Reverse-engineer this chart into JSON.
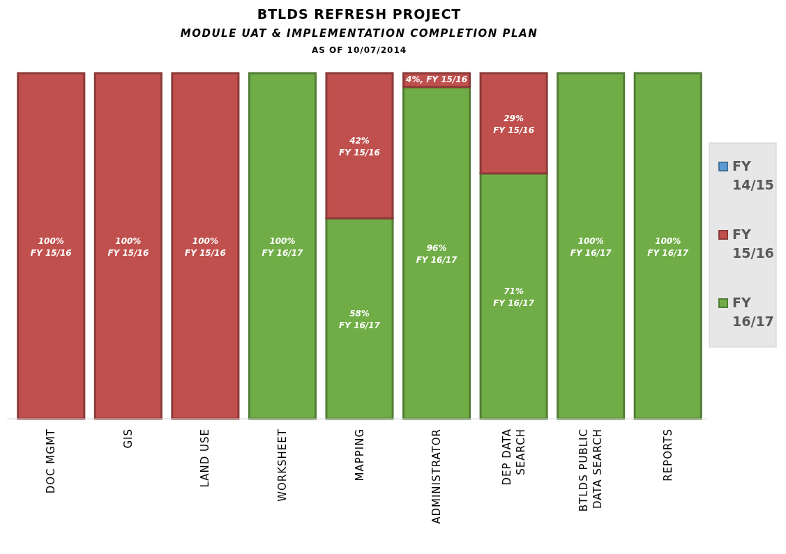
{
  "chart_data": {
    "type": "bar",
    "stacked": true,
    "title": "BTLDS REFRESH PROJECT",
    "subtitle": "MODULE UAT & IMPLEMENTATION COMPLETION PLAN",
    "annotations": [
      "AS OF 10/07/2014"
    ],
    "categories": [
      "DOC MGMT",
      "GIS",
      "LAND USE",
      "WORKSHEET",
      "MAPPING",
      "ADMINISTRATOR",
      "DEP DATA SEARCH",
      "BTLDS PUBLIC DATA SEARCH",
      "REPORTS"
    ],
    "series": [
      {
        "name": "FY 16/17",
        "color": "#70ad47",
        "values": [
          null,
          null,
          null,
          100,
          58,
          96,
          71,
          100,
          100
        ],
        "value_labels": [
          null,
          null,
          null,
          "100%\nFY 16/17",
          "58%\nFY 16/17",
          "96%\nFY 16/17",
          "71%\nFY 16/17",
          "100%\nFY 16/17",
          "100%\nFY 16/17"
        ]
      },
      {
        "name": "FY 15/16",
        "color": "#c0504d",
        "values": [
          100,
          100,
          100,
          null,
          42,
          4,
          29,
          null,
          null
        ],
        "value_labels": [
          "100%\nFY 15/16",
          "100%\nFY 15/16",
          "100%\nFY 15/16",
          null,
          "42%\nFY 15/16",
          "4%, FY 15/16",
          "29%\nFY 15/16",
          null,
          null
        ]
      },
      {
        "name": "FY 14/15",
        "color": "#5b9bd5",
        "values": [
          null,
          null,
          null,
          null,
          null,
          null,
          null,
          null,
          null
        ]
      }
    ],
    "legend": "right"
  }
}
